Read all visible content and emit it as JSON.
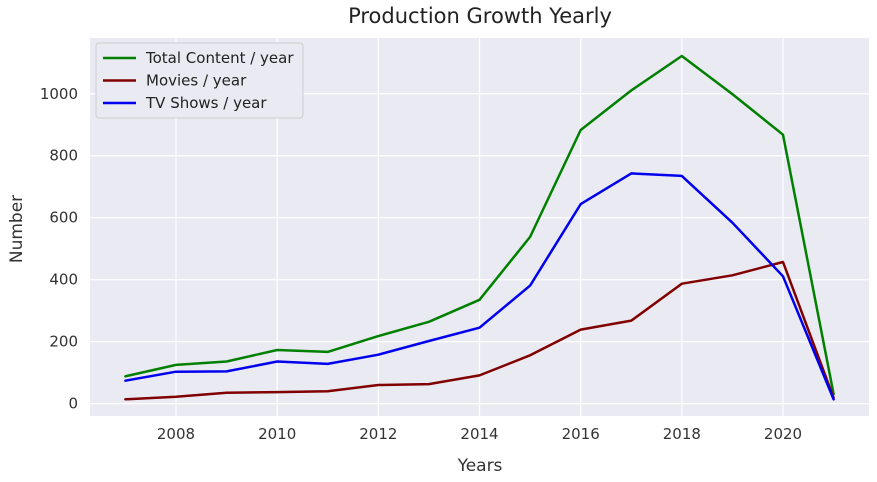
{
  "chart_data": {
    "type": "line",
    "title": "Production Growth Yearly",
    "xlabel": "Years",
    "ylabel": "Number",
    "x": [
      2007,
      2008,
      2009,
      2010,
      2011,
      2012,
      2013,
      2014,
      2015,
      2016,
      2017,
      2018,
      2019,
      2020,
      2021
    ],
    "series": [
      {
        "name": "Total Content / year",
        "color": "#008000",
        "values": [
          88,
          125,
          136,
          173,
          167,
          218,
          264,
          335,
          538,
          883,
          1011,
          1122,
          999,
          868,
          31
        ]
      },
      {
        "name": "Movies / year",
        "color": "#800000",
        "values": [
          14,
          22,
          35,
          37,
          40,
          60,
          63,
          91,
          156,
          239,
          268,
          387,
          414,
          457,
          19
        ]
      },
      {
        "name": "TV Shows / year",
        "color": "#0000ee",
        "values": [
          74,
          103,
          104,
          136,
          128,
          158,
          202,
          245,
          381,
          644,
          743,
          735,
          584,
          411,
          14
        ]
      }
    ],
    "xticks": [
      2008,
      2010,
      2012,
      2014,
      2016,
      2018,
      2020
    ],
    "yticks": [
      0,
      200,
      400,
      600,
      800,
      1000
    ],
    "xlim": [
      2006.3,
      2021.7
    ],
    "ylim": [
      -40,
      1180
    ],
    "grid": true,
    "legend_position": "top-left"
  }
}
